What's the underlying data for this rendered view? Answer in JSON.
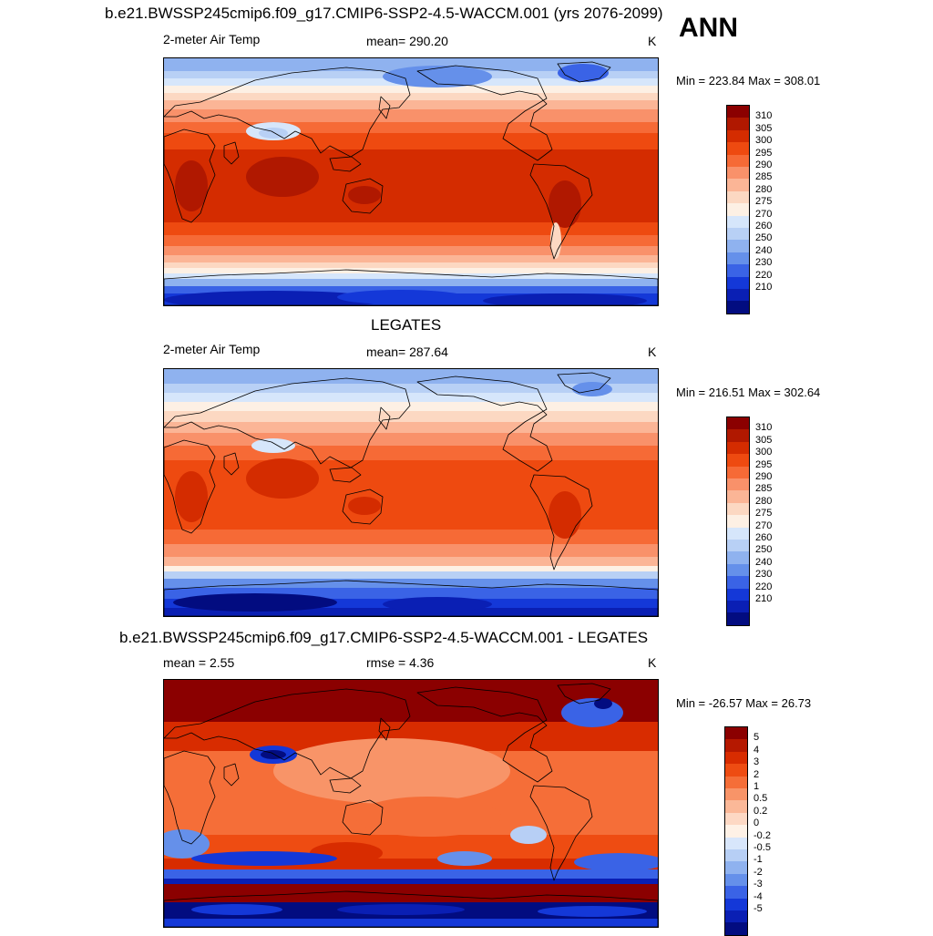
{
  "panels": [
    {
      "title": "b.e21.BWSSP245cmip6.f09_g17.CMIP6-SSP2-4.5-WACCM.001 (yrs 2076-2099)",
      "left": "2-meter Air Temp",
      "center": "mean= 290.20",
      "units": "K",
      "minmax": "Min = 223.84 Max = 308.01",
      "palette": "abs",
      "labels": [
        "310",
        "305",
        "300",
        "295",
        "290",
        "285",
        "280",
        "275",
        "270",
        "260",
        "250",
        "240",
        "230",
        "220",
        "210"
      ]
    },
    {
      "title": "LEGATES",
      "left": "2-meter Air Temp",
      "center": "mean= 287.64",
      "units": "K",
      "minmax": "Min = 216.51 Max = 302.64",
      "palette": "abs",
      "labels": [
        "310",
        "305",
        "300",
        "295",
        "290",
        "285",
        "280",
        "275",
        "270",
        "260",
        "250",
        "240",
        "230",
        "220",
        "210"
      ]
    },
    {
      "title": "b.e21.BWSSP245cmip6.f09_g17.CMIP6-SSP2-4.5-WACCM.001 - LEGATES",
      "left": "mean =   2.55",
      "center": "rmse =   4.36",
      "units": "K",
      "minmax": "Min = -26.57 Max =  26.73",
      "palette": "diff",
      "labels": [
        "5",
        "4",
        "3",
        "2",
        "1",
        "0.5",
        "0.2",
        "0",
        "-0.2",
        "-0.5",
        "-1",
        "-2",
        "-3",
        "-4",
        "-5"
      ]
    }
  ],
  "season": "ANN",
  "colors": {
    "abs": [
      "#8b0000",
      "#b01800",
      "#d42c00",
      "#ee4a10",
      "#f66a36",
      "#f9916a",
      "#fbb596",
      "#fcd8c2",
      "#fdf0e4",
      "#d6e6fb",
      "#b8d0f5",
      "#8fb2ef",
      "#6590ea",
      "#3a63e6",
      "#1438d8",
      "#0a1fb4",
      "#020c80"
    ],
    "diff": [
      "#8b0000",
      "#b51800",
      "#d82c00",
      "#ee4c12",
      "#f56e38",
      "#f89468",
      "#fbb898",
      "#fdd8c4",
      "#fef1e6",
      "#d8e6fb",
      "#b7cff5",
      "#8fb2ef",
      "#6590ea",
      "#3a63e6",
      "#1438d8",
      "#0a1fb4",
      "#020c80"
    ]
  },
  "chart_data": [
    {
      "type": "heatmap",
      "title": "b.e21.BWSSP245cmip6.f09_g17.CMIP6-SSP2-4.5-WACCM.001 (yrs 2076-2099)",
      "variable": "2-meter Air Temp",
      "units": "K",
      "mean": 290.2,
      "min": 223.84,
      "max": 308.01,
      "contour_levels": [
        210,
        220,
        230,
        240,
        250,
        260,
        270,
        275,
        280,
        285,
        290,
        295,
        300,
        305,
        310
      ]
    },
    {
      "type": "heatmap",
      "title": "LEGATES",
      "variable": "2-meter Air Temp",
      "units": "K",
      "mean": 287.64,
      "min": 216.51,
      "max": 302.64,
      "contour_levels": [
        210,
        220,
        230,
        240,
        250,
        260,
        270,
        275,
        280,
        285,
        290,
        295,
        300,
        305,
        310
      ]
    },
    {
      "type": "heatmap",
      "title": "b.e21.BWSSP245cmip6.f09_g17.CMIP6-SSP2-4.5-WACCM.001 - LEGATES",
      "units": "K",
      "mean": 2.55,
      "rmse": 4.36,
      "min": -26.57,
      "max": 26.73,
      "contour_levels": [
        -5,
        -4,
        -3,
        -2,
        -1,
        -0.5,
        -0.2,
        0,
        0.2,
        0.5,
        1,
        2,
        3,
        4,
        5
      ]
    }
  ]
}
